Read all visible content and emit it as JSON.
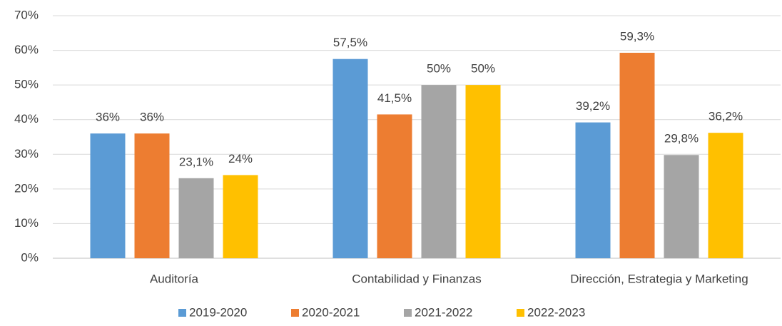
{
  "chart_data": {
    "type": "bar",
    "categories": [
      "Auditoría",
      "Contabilidad y Finanzas",
      "Dirección, Estrategia y Marketing"
    ],
    "series": [
      {
        "name": "2019-2020",
        "color": "#5b9bd5",
        "values": [
          36,
          57.5,
          39.2
        ],
        "value_labels": [
          "36%",
          "57,5%",
          "39,2%"
        ]
      },
      {
        "name": "2020-2021",
        "color": "#ed7d31",
        "values": [
          36,
          41.5,
          59.3
        ],
        "value_labels": [
          "36%",
          "41,5%",
          "59,3%"
        ]
      },
      {
        "name": "2021-2022",
        "color": "#a5a5a5",
        "values": [
          23.1,
          50,
          29.8
        ],
        "value_labels": [
          "23,1%",
          "50%",
          "29,8%"
        ]
      },
      {
        "name": "2022-2023",
        "color": "#ffc000",
        "values": [
          24,
          50,
          36.2
        ],
        "value_labels": [
          "24%",
          "50%",
          "36,2%"
        ]
      }
    ],
    "ylim": [
      0,
      70
    ],
    "yticks": [
      {
        "value": 0,
        "label": "0%"
      },
      {
        "value": 10,
        "label": "10%"
      },
      {
        "value": 20,
        "label": "20%"
      },
      {
        "value": 30,
        "label": "30%"
      },
      {
        "value": 40,
        "label": "40%"
      },
      {
        "value": 50,
        "label": "50%"
      },
      {
        "value": 60,
        "label": "60%"
      },
      {
        "value": 70,
        "label": "70%"
      }
    ],
    "grid": true,
    "legend": "bottom"
  }
}
